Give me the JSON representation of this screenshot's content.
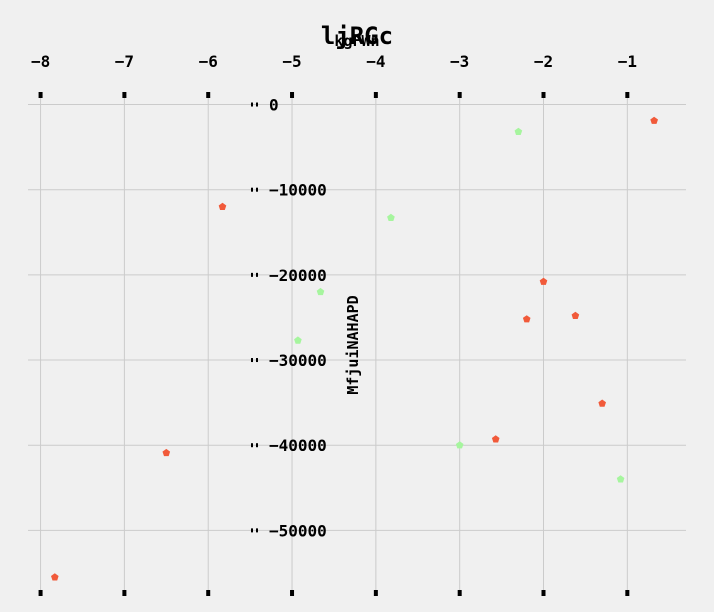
{
  "chart_data": {
    "type": "scatter",
    "title": "ljRGc",
    "xlabel": "kgFWn",
    "ylabel": "MfjuiNAHAPD",
    "xlim": [
      -8.15,
      -0.3
    ],
    "ylim": [
      -57000,
      1000
    ],
    "x_ticks": [
      -8,
      -7,
      -6,
      -5,
      -4,
      -3,
      -2,
      -1
    ],
    "x_tick_labels": [
      "−8",
      "−7",
      "−6",
      "−5",
      "−4",
      "−3",
      "−2",
      "−1"
    ],
    "y_ticks": [
      0,
      -10000,
      -20000,
      -30000,
      -40000,
      -50000
    ],
    "y_tick_labels": [
      "0",
      "−10000",
      "−20000",
      "−30000",
      "−40000",
      "−50000"
    ],
    "grid": true,
    "x_axis_position": "top",
    "series": [
      {
        "color": "#f15a3a",
        "points": [
          {
            "x": -0.68,
            "y": -1900
          },
          {
            "x": -5.83,
            "y": -12000
          },
          {
            "x": -2.0,
            "y": -20800
          },
          {
            "x": -2.2,
            "y": -25200
          },
          {
            "x": -1.62,
            "y": -24800
          },
          {
            "x": -1.3,
            "y": -35100
          },
          {
            "x": -2.57,
            "y": -39300
          },
          {
            "x": -6.5,
            "y": -40900
          },
          {
            "x": -7.83,
            "y": -55500
          }
        ]
      },
      {
        "color": "#a6f59e",
        "points": [
          {
            "x": -2.3,
            "y": -3200
          },
          {
            "x": -3.82,
            "y": -13300
          },
          {
            "x": -4.66,
            "y": -22000
          },
          {
            "x": -4.93,
            "y": -27700
          },
          {
            "x": -3.0,
            "y": -40000
          },
          {
            "x": -1.08,
            "y": -44000
          }
        ]
      }
    ]
  }
}
